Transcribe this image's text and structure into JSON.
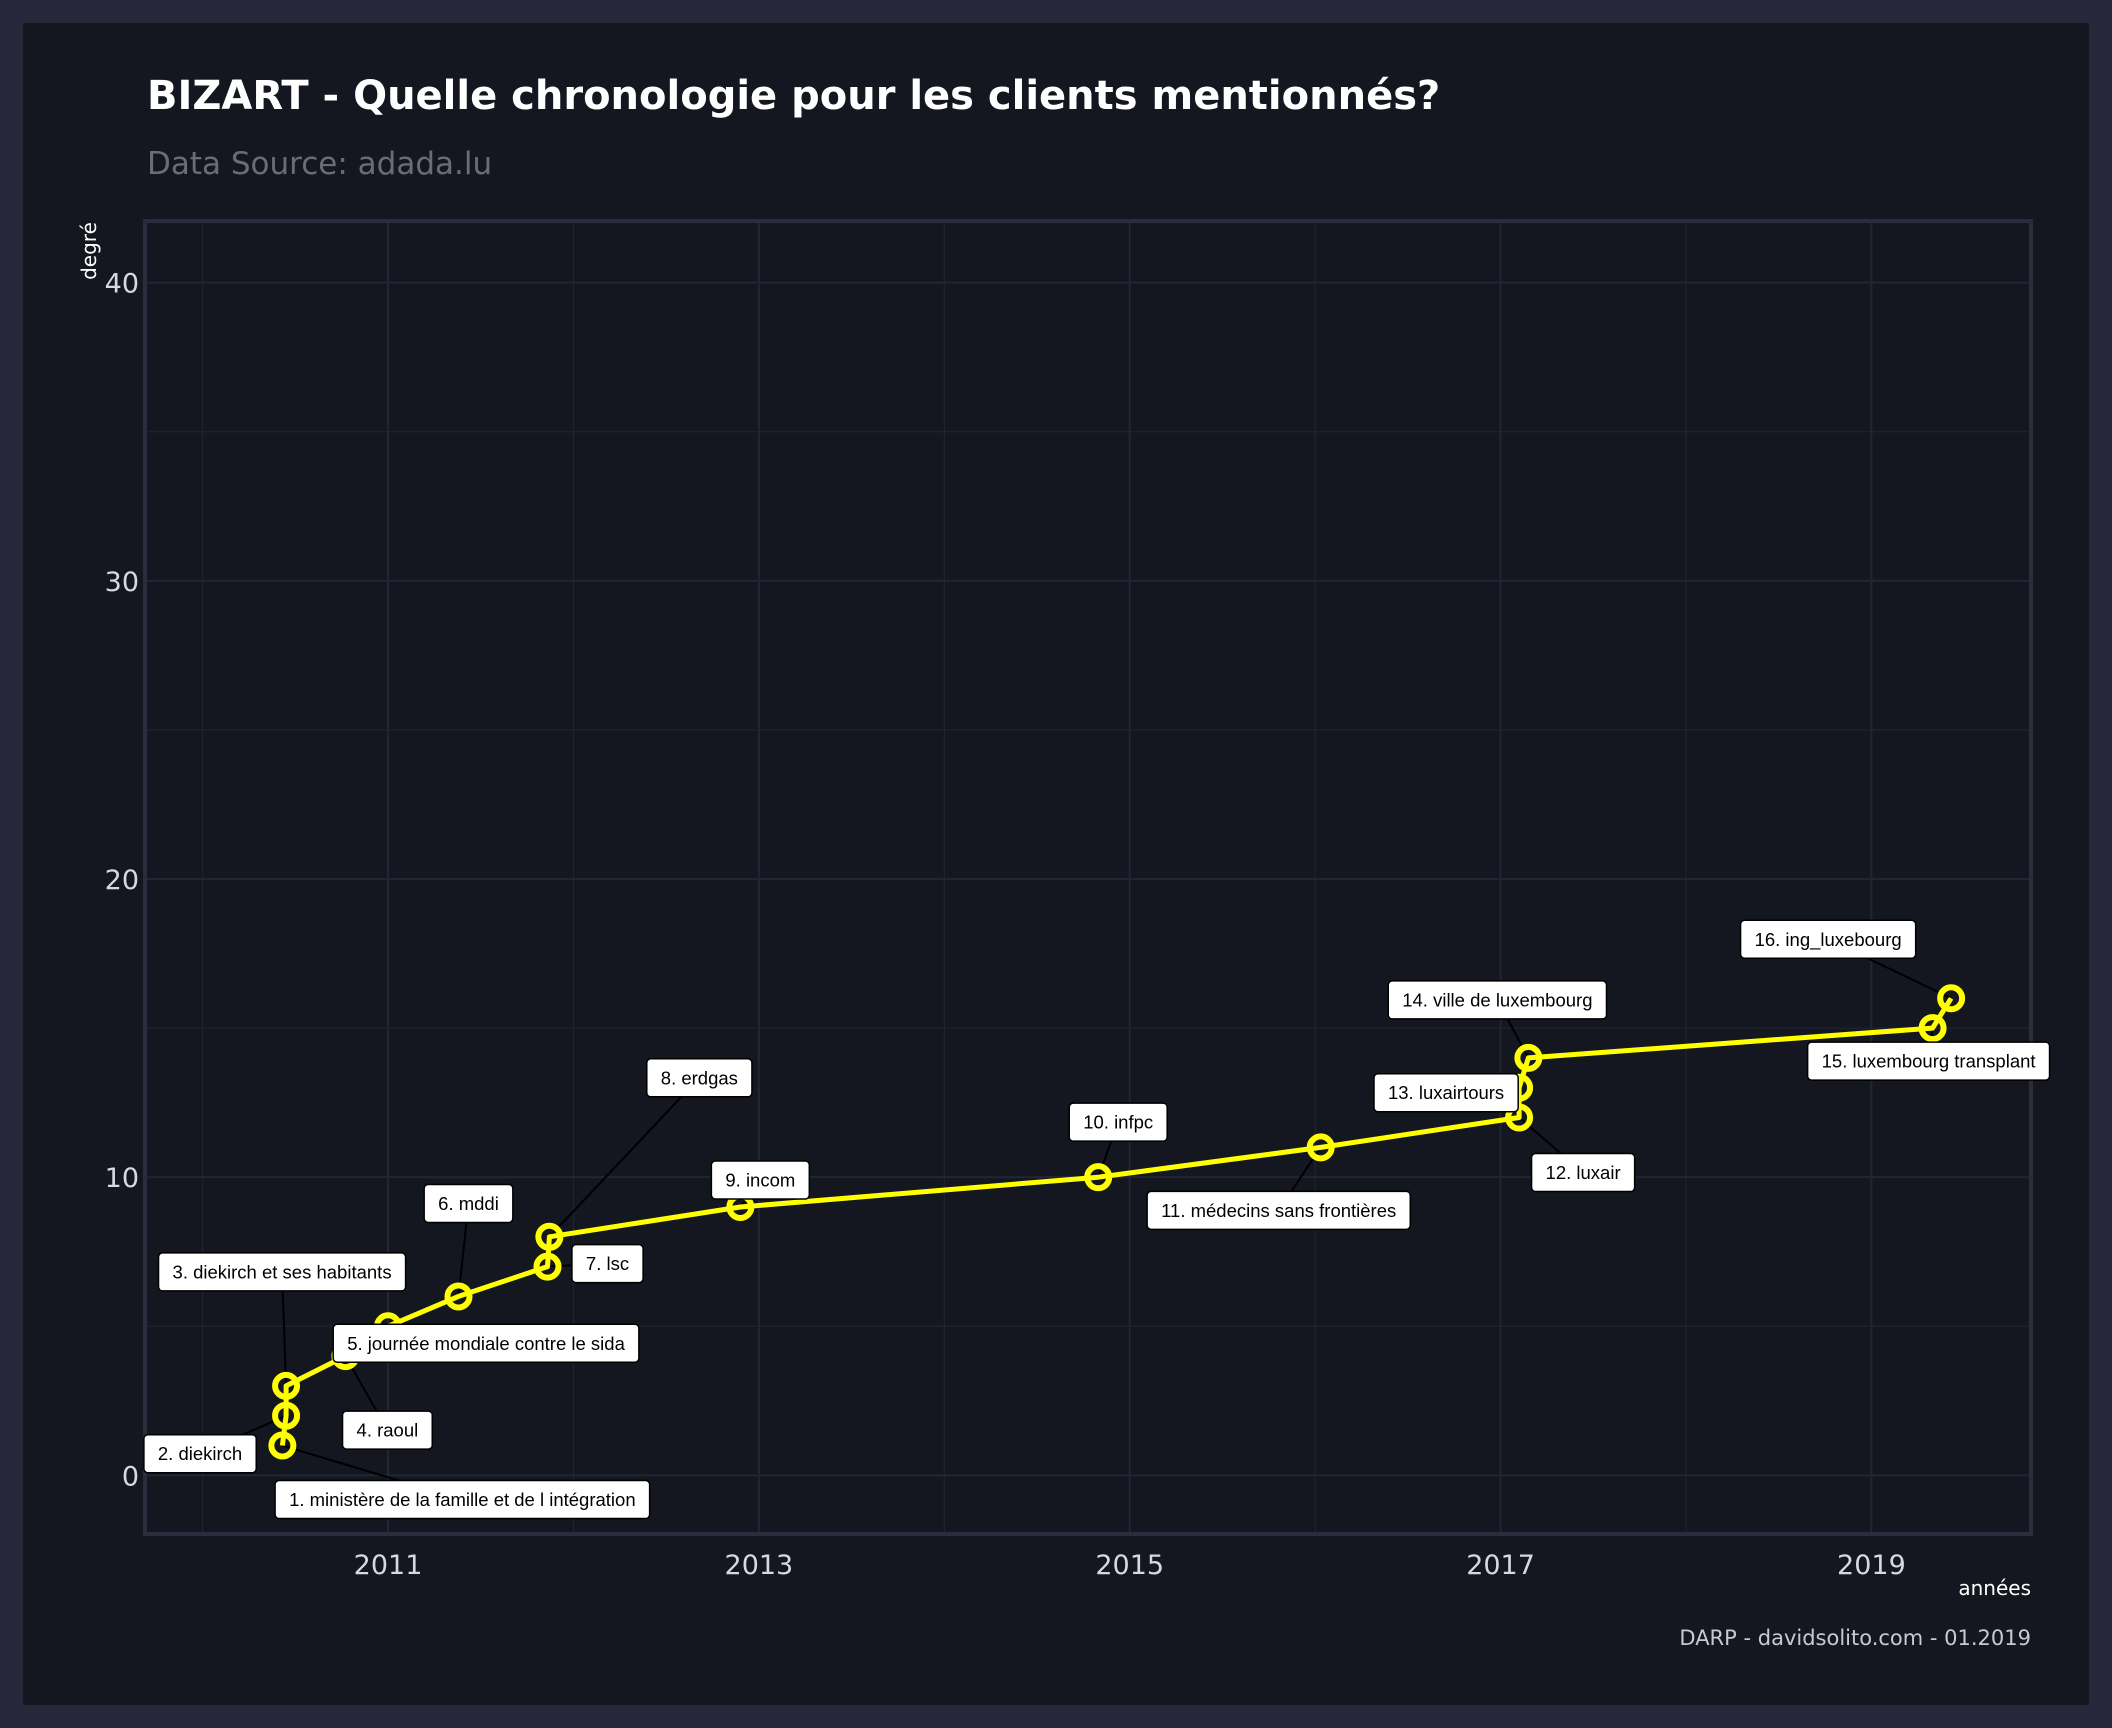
{
  "chart_data": {
    "type": "line",
    "title": "BIZART - Quelle chronologie pour les clients mentionnés?",
    "subtitle": "Data Source: adada.lu",
    "xlabel": "années",
    "ylabel": "degré",
    "caption": "DARP - davidsolito.com - 01.2019",
    "xlim": [
      2009.7,
      2019.85
    ],
    "ylim": [
      -1.9,
      42
    ],
    "x_ticks": [
      2011,
      2013,
      2015,
      2017,
      2019
    ],
    "y_ticks": [
      0,
      10,
      20,
      30,
      40
    ],
    "grid": true,
    "line_color": "#ffff00",
    "points": [
      {
        "x": 2010.43,
        "y": 1,
        "label": "1. ministère de la famille et de l intégration"
      },
      {
        "x": 2010.45,
        "y": 2,
        "label": "2. diekirch"
      },
      {
        "x": 2010.45,
        "y": 3,
        "label": "3. diekirch et ses habitants"
      },
      {
        "x": 2010.77,
        "y": 4,
        "label": "4. raoul"
      },
      {
        "x": 2011.0,
        "y": 5,
        "label": "5. journée mondiale contre le sida"
      },
      {
        "x": 2011.38,
        "y": 6,
        "label": "6. mddi"
      },
      {
        "x": 2011.86,
        "y": 7,
        "label": "7. lsc"
      },
      {
        "x": 2011.87,
        "y": 8,
        "label": "8. erdgas"
      },
      {
        "x": 2012.9,
        "y": 9,
        "label": "9. incom"
      },
      {
        "x": 2014.83,
        "y": 10,
        "label": "10. infpc"
      },
      {
        "x": 2016.03,
        "y": 11,
        "label": "11. médecins sans frontières"
      },
      {
        "x": 2017.1,
        "y": 12,
        "label": "12. luxair"
      },
      {
        "x": 2017.1,
        "y": 13,
        "label": "13. luxairtours"
      },
      {
        "x": 2017.15,
        "y": 14,
        "label": "14. ville de luxembourg"
      },
      {
        "x": 2019.33,
        "y": 15,
        "label": "15. luxembourg transplant"
      },
      {
        "x": 2019.43,
        "y": 16,
        "label": "16. ing_luxebourg"
      }
    ]
  }
}
